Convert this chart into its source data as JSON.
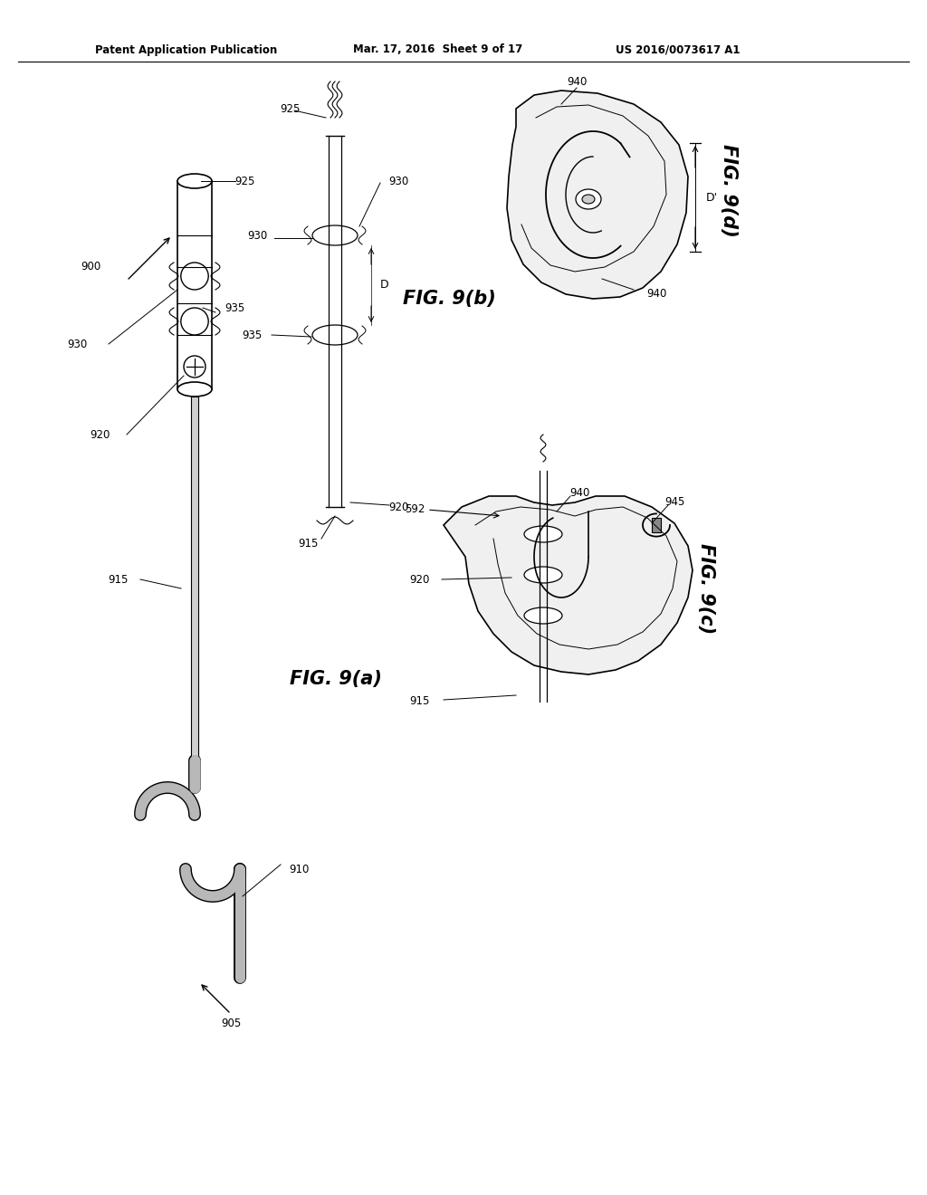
{
  "bg_color": "#ffffff",
  "header_left": "Patent Application Publication",
  "header_mid": "Mar. 17, 2016  Sheet 9 of 17",
  "header_right": "US 2016/0073617 A1",
  "fig_a_label": "FIG. 9(a)",
  "fig_b_label": "FIG. 9(b)",
  "fig_c_label": "FIG. 9(c)",
  "fig_d_label": "FIG. 9(d)",
  "line_color": "#000000",
  "gray_fill": "#c8c8c8",
  "light_gray": "#e8e8e8",
  "label_fontsize": 8.5,
  "fig_label_fontsize": 15
}
